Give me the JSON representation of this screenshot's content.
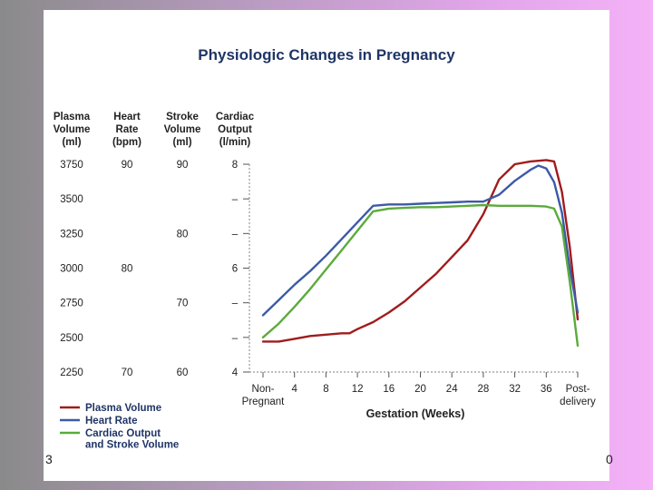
{
  "colors": {
    "plasma": "#a01c1c",
    "heart": "#3c5aa6",
    "cardiac": "#5aab3c",
    "title": "#1f3566",
    "grid": "#999999"
  },
  "page_numbers": {
    "left": "3",
    "right": "0"
  },
  "chart_data": {
    "type": "line",
    "title": "Physiologic Changes in Pregnancy",
    "xlabel": "Gestation (Weeks)",
    "x_ticks": [
      {
        "pos": 0,
        "label": "Non-",
        "label2": "Pregnant"
      },
      {
        "pos": 4,
        "label": "4"
      },
      {
        "pos": 8,
        "label": "8"
      },
      {
        "pos": 12,
        "label": "12"
      },
      {
        "pos": 16,
        "label": "16"
      },
      {
        "pos": 20,
        "label": "20"
      },
      {
        "pos": 24,
        "label": "24"
      },
      {
        "pos": 28,
        "label": "28"
      },
      {
        "pos": 32,
        "label": "32"
      },
      {
        "pos": 36,
        "label": "36"
      },
      {
        "pos": 40,
        "label": "Post-",
        "label2": "delivery"
      }
    ],
    "xlim": [
      0,
      40
    ],
    "ylim": [
      2250,
      3750
    ],
    "y_axes": [
      {
        "header": [
          "Plasma",
          "Volume",
          "(ml)"
        ],
        "ticks": [
          "3750",
          "3500",
          "3250",
          "3000",
          "2750",
          "2500",
          "2250"
        ]
      },
      {
        "header": [
          "Heart",
          "Rate",
          "(bpm)"
        ],
        "ticks": [
          "90",
          "",
          "",
          "80",
          "",
          "",
          "70"
        ]
      },
      {
        "header": [
          "Stroke",
          "Volume",
          "(ml)"
        ],
        "ticks": [
          "90",
          "",
          "80",
          "",
          "70",
          "",
          "60"
        ]
      },
      {
        "header": [
          "Cardiac",
          "Output",
          "(l/min)"
        ],
        "ticks": [
          "8",
          "–",
          "–",
          "6",
          "–",
          "–",
          "4"
        ]
      }
    ],
    "series": [
      {
        "name": "Plasma Volume",
        "color_key": "plasma",
        "x": [
          0,
          2,
          4,
          6,
          8,
          10,
          11,
          12,
          14,
          16,
          18,
          20,
          22,
          24,
          26,
          28,
          30,
          32,
          34,
          36,
          37,
          38,
          39,
          40
        ],
        "y": [
          2470,
          2470,
          2490,
          2510,
          2520,
          2530,
          2530,
          2560,
          2610,
          2680,
          2760,
          2860,
          2960,
          3080,
          3200,
          3390,
          3640,
          3750,
          3770,
          3780,
          3770,
          3550,
          3150,
          2630
        ]
      },
      {
        "name": "Heart Rate",
        "color_key": "heart",
        "x": [
          0,
          2,
          4,
          6,
          8,
          10,
          12,
          14,
          16,
          18,
          20,
          22,
          24,
          26,
          28,
          30,
          32,
          34,
          35,
          36,
          37,
          38,
          39,
          40
        ],
        "y": [
          2660,
          2770,
          2880,
          2980,
          3090,
          3210,
          3330,
          3450,
          3460,
          3460,
          3465,
          3470,
          3475,
          3480,
          3480,
          3530,
          3630,
          3710,
          3740,
          3720,
          3620,
          3400,
          3000,
          2680
        ]
      },
      {
        "name": "Cardiac Output and Stroke Volume",
        "color_key": "cardiac",
        "x": [
          0,
          2,
          4,
          6,
          8,
          10,
          12,
          14,
          16,
          18,
          20,
          22,
          24,
          26,
          28,
          30,
          32,
          34,
          36,
          37,
          38,
          39,
          40
        ],
        "y": [
          2500,
          2600,
          2720,
          2850,
          2990,
          3130,
          3270,
          3410,
          3430,
          3435,
          3440,
          3440,
          3445,
          3450,
          3455,
          3450,
          3450,
          3450,
          3445,
          3430,
          3300,
          2900,
          2440
        ]
      }
    ],
    "legend": {
      "position": "bottom-left",
      "entries": [
        {
          "lines": [
            "Plasma Volume"
          ],
          "color_key": "plasma"
        },
        {
          "lines": [
            "Heart Rate"
          ],
          "color_key": "heart"
        },
        {
          "lines": [
            "Cardiac Output",
            "and Stroke Volume"
          ],
          "color_key": "cardiac"
        }
      ]
    }
  }
}
